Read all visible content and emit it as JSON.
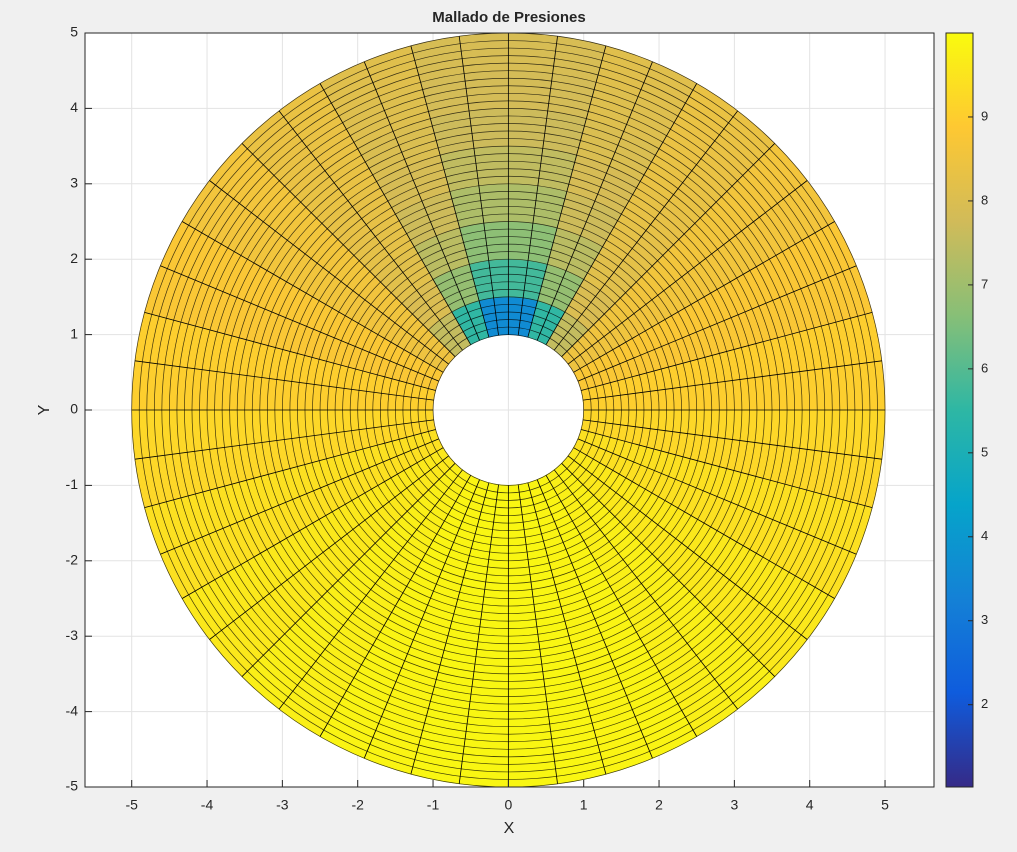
{
  "chart_data": {
    "type": "polar-mesh",
    "title": "Mallado de Presiones",
    "x_label": "X",
    "y_label": "Y",
    "xlim": [
      -5.62,
      5.65
    ],
    "ylim": [
      -5,
      5
    ],
    "xticks": [
      -5,
      -4,
      -3,
      -2,
      -1,
      0,
      1,
      2,
      3,
      4,
      5
    ],
    "yticks": [
      -5,
      -4,
      -3,
      -2,
      -1,
      0,
      1,
      2,
      3,
      4,
      5
    ],
    "grid": true,
    "colormap": "parula",
    "clim": [
      1.02,
      10.0
    ],
    "colorbar_ticks": [
      2,
      3,
      4,
      5,
      6,
      7,
      8,
      9
    ],
    "r_edges": [
      1,
      1.5,
      2,
      2.5,
      3,
      3.5,
      4,
      4.5,
      5
    ],
    "theta_edges": [
      0,
      15,
      30,
      45,
      60,
      75,
      90,
      105,
      120,
      135,
      150,
      165,
      180,
      195,
      210,
      225,
      240,
      255,
      270,
      285,
      300,
      315,
      330,
      345,
      360
    ],
    "values": [
      [
        9.0,
        9.0,
        9.0,
        9.0,
        9.0,
        9.0,
        9.0,
        9.0
      ],
      [
        8.79,
        8.79,
        8.79,
        8.79,
        8.79,
        8.79,
        8.79,
        8.79
      ],
      [
        8.47,
        8.54,
        8.56,
        8.58,
        8.59,
        8.59,
        8.6,
        8.6
      ],
      [
        7.54,
        7.97,
        8.16,
        8.25,
        8.31,
        8.35,
        8.37,
        8.39
      ],
      [
        5.54,
        6.85,
        7.41,
        7.7,
        7.88,
        7.99,
        8.07,
        8.12
      ],
      [
        3.59,
        5.77,
        6.72,
        7.21,
        7.5,
        7.69,
        7.82,
        7.91
      ],
      [
        3.59,
        5.77,
        6.72,
        7.21,
        7.5,
        7.69,
        7.82,
        7.91
      ],
      [
        5.54,
        6.85,
        7.41,
        7.7,
        7.88,
        7.99,
        8.07,
        8.12
      ],
      [
        7.54,
        7.97,
        8.16,
        8.25,
        8.31,
        8.35,
        8.37,
        8.39
      ],
      [
        8.47,
        8.54,
        8.56,
        8.58,
        8.59,
        8.59,
        8.6,
        8.6
      ],
      [
        8.79,
        8.79,
        8.79,
        8.79,
        8.79,
        8.79,
        8.79,
        8.79
      ],
      [
        9.0,
        9.0,
        9.0,
        9.0,
        9.0,
        9.0,
        9.0,
        9.0
      ],
      [
        9.2,
        9.2,
        9.2,
        9.2,
        9.2,
        9.2,
        9.2,
        9.2
      ],
      [
        9.41,
        9.41,
        9.41,
        9.41,
        9.41,
        9.41,
        9.41,
        9.41
      ],
      [
        9.59,
        9.59,
        9.59,
        9.59,
        9.59,
        9.59,
        9.59,
        9.59
      ],
      [
        9.73,
        9.73,
        9.73,
        9.73,
        9.73,
        9.73,
        9.73,
        9.73
      ],
      [
        9.84,
        9.84,
        9.84,
        9.84,
        9.84,
        9.84,
        9.84,
        9.84
      ],
      [
        9.89,
        9.89,
        9.89,
        9.89,
        9.89,
        9.89,
        9.89,
        9.89
      ],
      [
        9.89,
        9.89,
        9.89,
        9.89,
        9.89,
        9.89,
        9.89,
        9.89
      ],
      [
        9.84,
        9.84,
        9.84,
        9.84,
        9.84,
        9.84,
        9.84,
        9.84
      ],
      [
        9.73,
        9.73,
        9.73,
        9.73,
        9.73,
        9.73,
        9.73,
        9.73
      ],
      [
        9.59,
        9.59,
        9.59,
        9.59,
        9.59,
        9.59,
        9.59,
        9.59
      ],
      [
        9.41,
        9.41,
        9.41,
        9.41,
        9.41,
        9.41,
        9.41,
        9.41
      ],
      [
        9.2,
        9.2,
        9.2,
        9.2,
        9.2,
        9.2,
        9.2,
        9.2
      ]
    ]
  }
}
